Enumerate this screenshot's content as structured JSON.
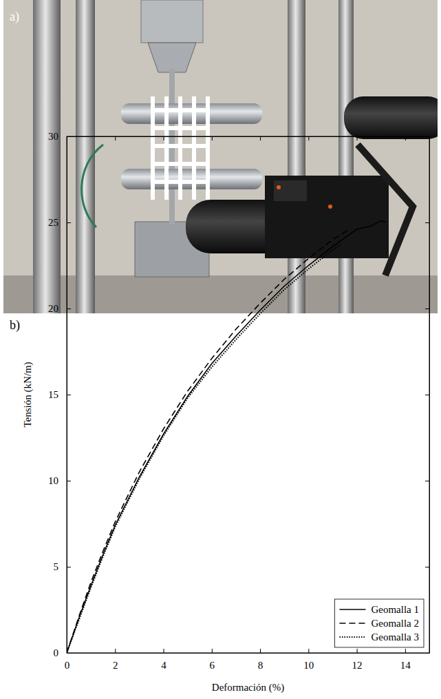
{
  "figure": {
    "panel_labels": [
      "a)",
      "b)"
    ]
  },
  "chart_data": {
    "type": "line",
    "xlabel": "Deformación (%)",
    "ylabel": "Tensión (kN/m)",
    "xlim": [
      0,
      15
    ],
    "xticks": [
      0,
      2,
      4,
      6,
      8,
      10,
      12,
      14
    ],
    "ylim": [
      0,
      30
    ],
    "yticks": [
      0,
      5,
      10,
      15,
      20,
      25,
      30
    ],
    "grid": false,
    "legend": "lower right",
    "series": [
      {
        "name": "Geomalla 1",
        "color": "#000000",
        "line_style": "solid",
        "x": [
          0,
          0.5,
          1,
          1.5,
          2,
          3,
          4,
          5,
          6,
          7,
          8,
          9,
          10,
          11,
          12,
          12.3,
          12.6,
          13,
          13.2
        ],
        "values": [
          0,
          2.0,
          3.9,
          5.7,
          7.4,
          10.2,
          12.7,
          14.9,
          16.8,
          18.4,
          19.9,
          21.3,
          22.5,
          23.6,
          24.6,
          24.7,
          24.8,
          25.1,
          25.0
        ]
      },
      {
        "name": "Geomalla 2",
        "color": "#000000",
        "line_style": "dashed",
        "x": [
          0,
          0.5,
          1,
          1.5,
          2,
          3,
          4,
          5,
          6,
          7,
          8,
          9,
          10,
          11,
          11.7
        ],
        "values": [
          0,
          2.1,
          4.1,
          5.9,
          7.6,
          10.5,
          13.0,
          15.2,
          17.1,
          18.8,
          20.3,
          21.7,
          22.9,
          24.0,
          24.6
        ]
      },
      {
        "name": "Geomalla 3",
        "color": "#000000",
        "line_style": "dotted",
        "x": [
          0,
          0.5,
          1,
          1.5,
          2,
          3,
          4,
          5,
          6,
          7,
          8,
          9,
          10,
          11,
          11.3
        ],
        "values": [
          0,
          1.9,
          3.8,
          5.6,
          7.3,
          10.1,
          12.6,
          14.8,
          16.6,
          18.2,
          19.7,
          21.1,
          22.3,
          23.4,
          23.7
        ]
      }
    ]
  }
}
